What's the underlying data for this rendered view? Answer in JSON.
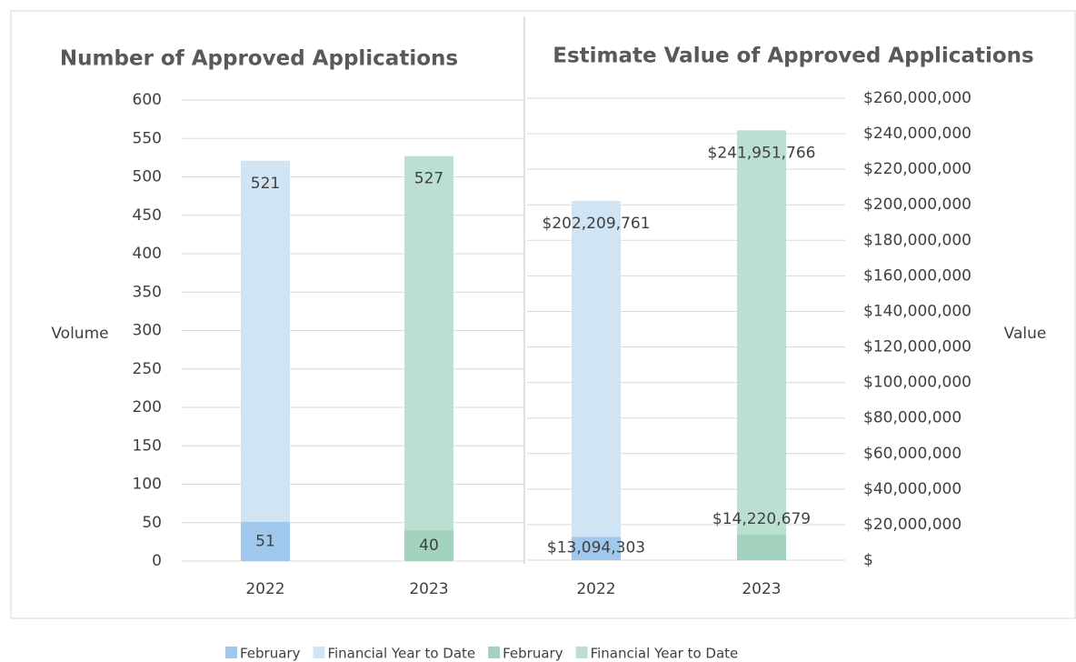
{
  "chart_data": [
    {
      "type": "bar",
      "title": "Number of Approved Applications",
      "y_label": "Volume",
      "categories": [
        "2022",
        "2023"
      ],
      "series": [
        {
          "name": "February",
          "color": "#9fc8ec",
          "values": [
            51,
            null
          ]
        },
        {
          "name": "Financial Year to Date",
          "color": "#d0e4f4",
          "values": [
            521,
            null
          ]
        },
        {
          "name": "February",
          "color": "#a3d2bf",
          "values": [
            null,
            40
          ]
        },
        {
          "name": "Financial Year to Date",
          "color": "#bbe0d1",
          "values": [
            null,
            527
          ]
        }
      ],
      "ylim": [
        0,
        600
      ],
      "yticks": [
        0,
        50,
        100,
        150,
        200,
        250,
        300,
        350,
        400,
        450,
        500,
        550,
        600
      ],
      "grid": true
    },
    {
      "type": "bar",
      "title": "Estimate Value of Approved Applications",
      "y_label": "Value",
      "categories": [
        "2022",
        "2023"
      ],
      "series": [
        {
          "color": "#9fc8ec",
          "values": [
            13094303,
            null
          ],
          "value_labels": [
            "$13,094,303",
            null
          ]
        },
        {
          "color": "#d0e4f4",
          "values": [
            202209761,
            null
          ],
          "value_labels": [
            "$202,209,761",
            null
          ]
        },
        {
          "color": "#a3d2bf",
          "values": [
            null,
            14220679
          ],
          "value_labels": [
            null,
            "$14,220,679"
          ]
        },
        {
          "color": "#bbe0d1",
          "values": [
            null,
            241951766
          ],
          "value_labels": [
            null,
            "$241,951,766"
          ]
        }
      ],
      "ylim": [
        0,
        260000000
      ],
      "yticks": [
        {
          "value": 0,
          "label": "$"
        },
        {
          "value": 20000000,
          "label": "$20,000,000"
        },
        {
          "value": 40000000,
          "label": "$40,000,000"
        },
        {
          "value": 60000000,
          "label": "$60,000,000"
        },
        {
          "value": 80000000,
          "label": "$80,000,000"
        },
        {
          "value": 100000000,
          "label": "$100,000,000"
        },
        {
          "value": 120000000,
          "label": "$120,000,000"
        },
        {
          "value": 140000000,
          "label": "$140,000,000"
        },
        {
          "value": 160000000,
          "label": "$160,000,000"
        },
        {
          "value": 180000000,
          "label": "$180,000,000"
        },
        {
          "value": 200000000,
          "label": "$200,000,000"
        },
        {
          "value": 220000000,
          "label": "$220,000,000"
        },
        {
          "value": 240000000,
          "label": "$240,000,000"
        },
        {
          "value": 260000000,
          "label": "$260,000,000"
        }
      ],
      "grid": true
    }
  ]
}
